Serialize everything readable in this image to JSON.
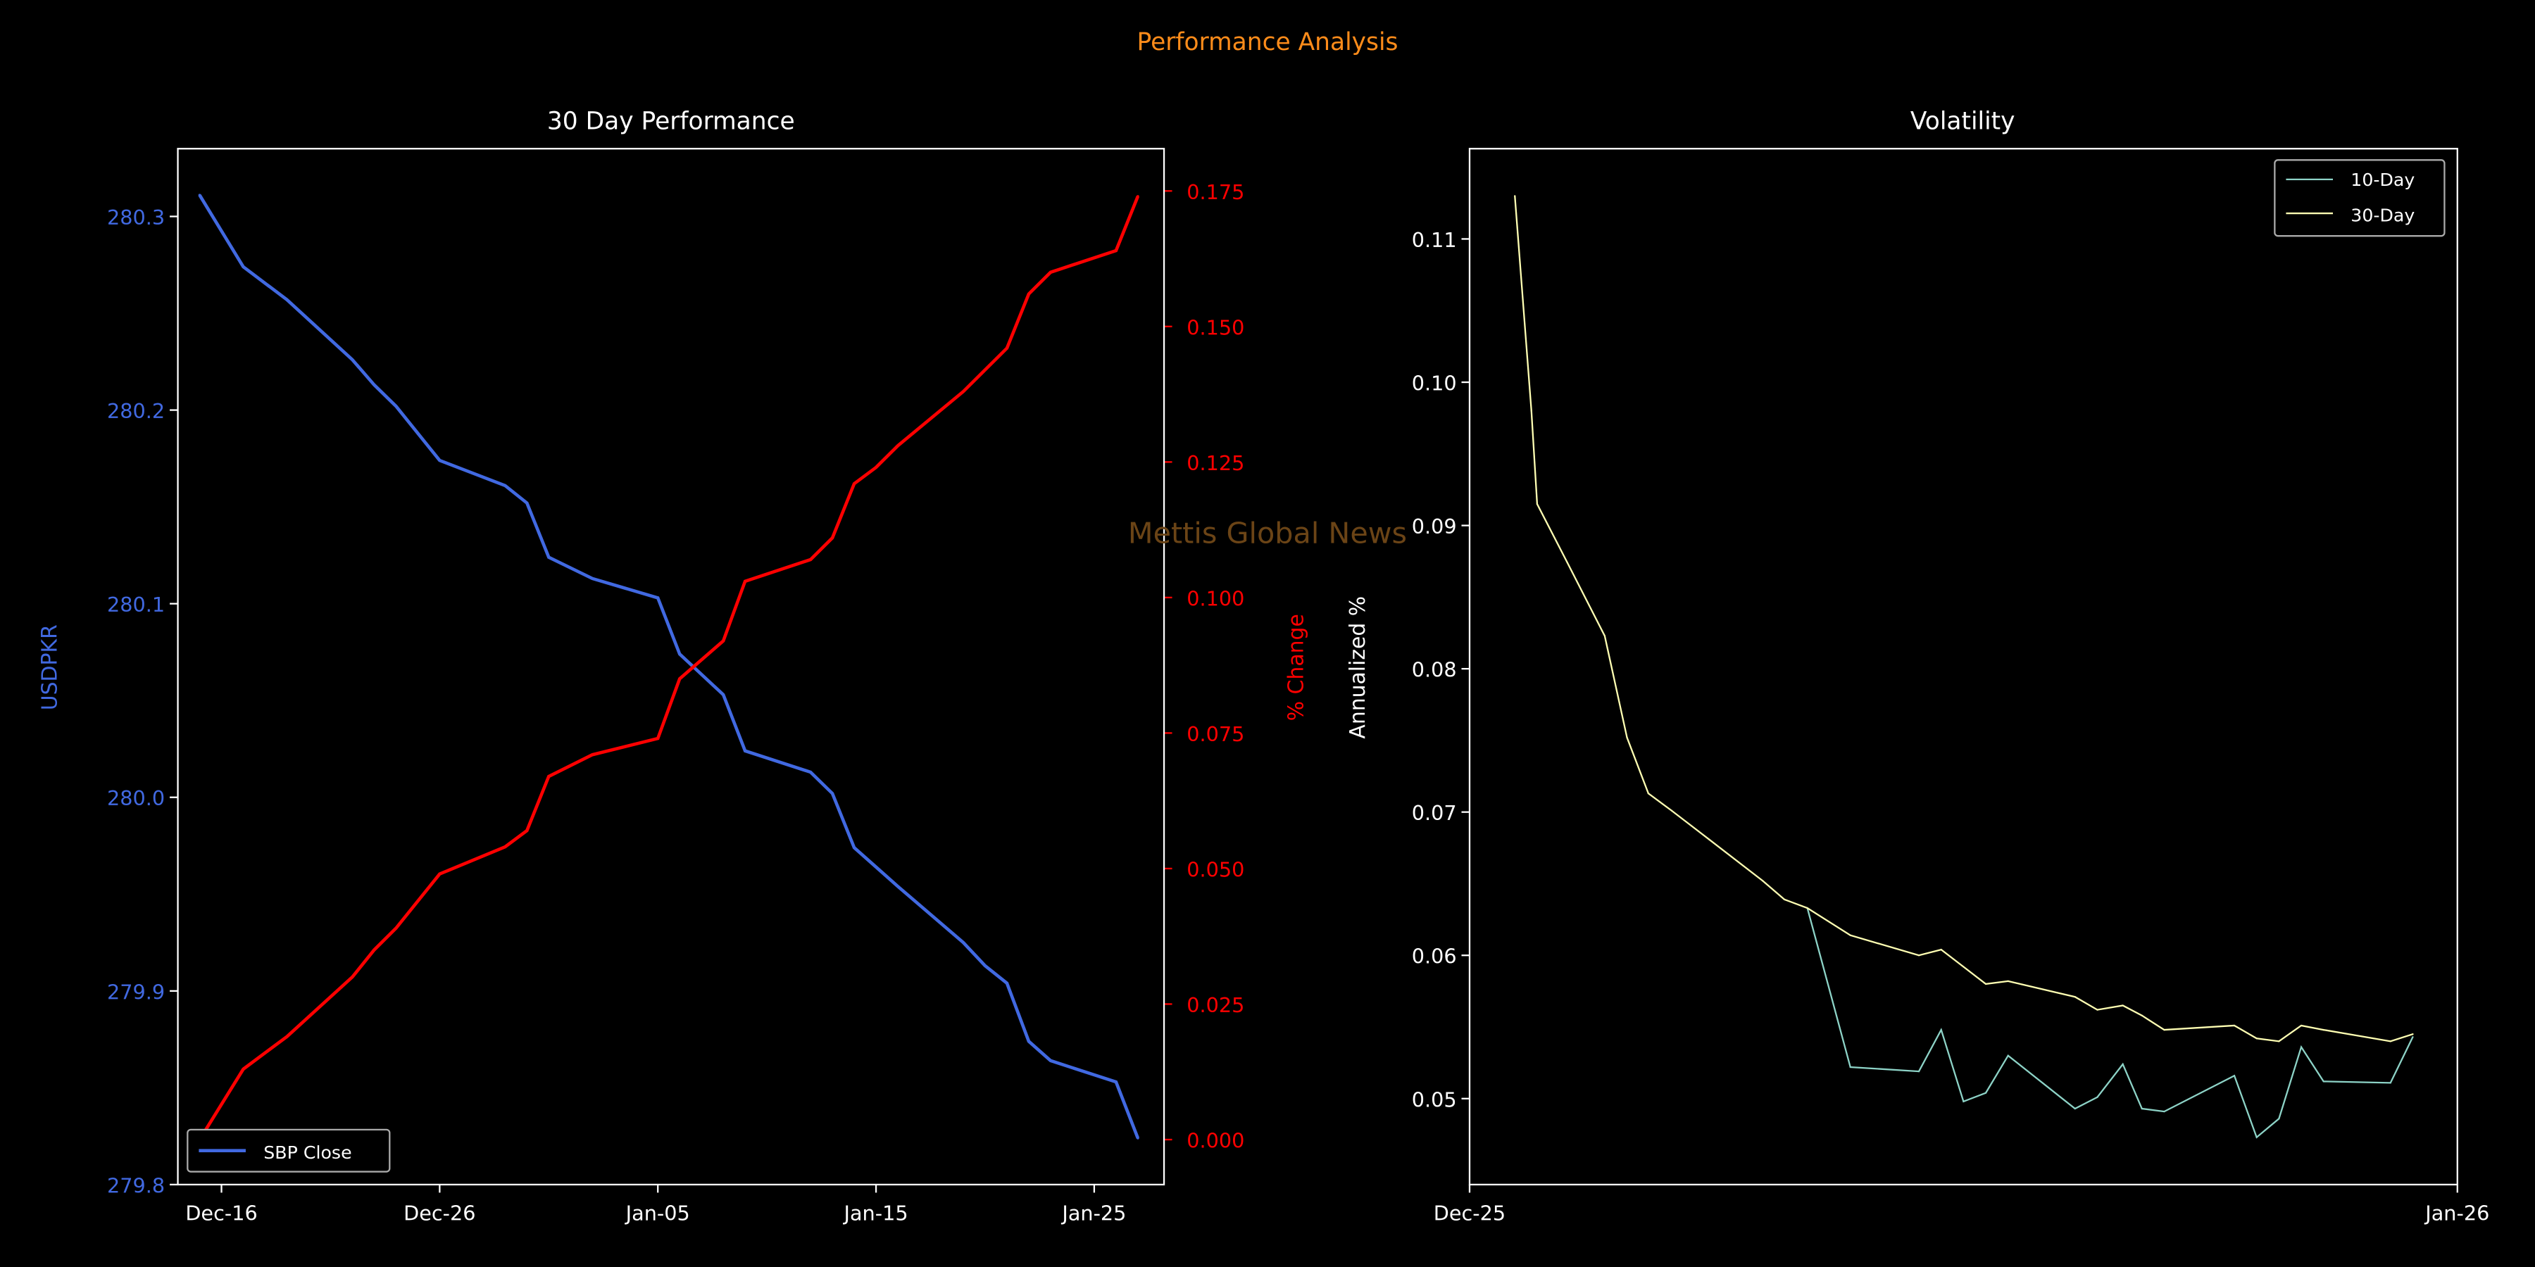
{
  "suptitle": "Performance Analysis",
  "watermark": "Mettis Global News",
  "colors": {
    "background": "#000000",
    "title": "#ff8c1a",
    "watermark": "#6b4416",
    "price": "#4169e1",
    "pct": "#ff0000",
    "vol10": "#8dd3c7",
    "vol30": "#ffffb3",
    "axis": "#ffffff"
  },
  "chart_data": [
    {
      "type": "line",
      "title": "30 Day Performance",
      "ylabel": "USDPKR",
      "ylabel_right": "% Change",
      "xlabel": "",
      "xticks": [
        {
          "label": "Dec-16",
          "day": 1
        },
        {
          "label": "Dec-26",
          "day": 11
        },
        {
          "label": "Jan-05",
          "day": 21
        },
        {
          "label": "Jan-15",
          "day": 31
        },
        {
          "label": "Jan-25",
          "day": 41
        }
      ],
      "xlim_days_from_dec15": [
        -1.0,
        44.2
      ],
      "ylim": [
        279.8,
        280.335
      ],
      "ylim_right": [
        -0.0083,
        0.1828
      ],
      "yticks": [
        "280.3",
        "280.2",
        "280.1",
        "280.0",
        "279.9",
        "279.8"
      ],
      "yticks_right": [
        "0.175",
        "0.150",
        "0.125",
        "0.100",
        "0.075",
        "0.050",
        "0.025",
        "0.000"
      ],
      "legend": {
        "label": "SBP Close",
        "placement": "lower-left"
      },
      "dates": [
        "Dec-15",
        "Dec-17",
        "Dec-19",
        "Dec-22",
        "Dec-23",
        "Dec-24",
        "Dec-26",
        "Dec-29",
        "Dec-30",
        "Dec-31",
        "Jan-02",
        "Jan-05",
        "Jan-06",
        "Jan-08",
        "Jan-09",
        "Jan-12",
        "Jan-13",
        "Jan-14",
        "Jan-15",
        "Jan-16",
        "Jan-19",
        "Jan-20",
        "Jan-21",
        "Jan-22",
        "Jan-23",
        "Jan-26",
        "Jan-27"
      ],
      "x_days": [
        0,
        2,
        4,
        7,
        8,
        9,
        11,
        14,
        15,
        16,
        18,
        21,
        22,
        24,
        25,
        28,
        29,
        30,
        31,
        32,
        35,
        36,
        37,
        38,
        39,
        42,
        43
      ],
      "series": [
        {
          "name": "SBP Close",
          "axis": "left",
          "values": [
            280.311,
            280.274,
            280.257,
            280.226,
            280.213,
            280.202,
            280.174,
            280.161,
            280.152,
            280.124,
            280.113,
            280.103,
            280.074,
            280.053,
            280.024,
            280.013,
            280.002,
            279.974,
            279.964,
            279.954,
            279.925,
            279.913,
            279.904,
            279.874,
            279.864,
            279.853,
            279.824
          ]
        },
        {
          "name": "% Change",
          "axis": "right",
          "values": [
            0.0,
            0.013,
            0.019,
            0.03,
            0.035,
            0.039,
            0.049,
            0.054,
            0.057,
            0.067,
            0.071,
            0.074,
            0.085,
            0.092,
            0.103,
            0.107,
            0.111,
            0.121,
            0.124,
            0.128,
            0.138,
            0.142,
            0.146,
            0.156,
            0.16,
            0.164,
            0.174
          ]
        }
      ]
    },
    {
      "type": "line",
      "title": "Volatility",
      "ylabel": "Annualized %",
      "xlabel": "",
      "xticks": [
        {
          "label": "Dec-25",
          "day": 0
        },
        {
          "label": "Jan-26",
          "day": 31
        }
      ],
      "xlim": [
        0,
        31
      ],
      "ylim": [
        0.044,
        0.1163
      ],
      "yticks": [
        "0.11",
        "0.10",
        "0.09",
        "0.08",
        "0.07",
        "0.06",
        "0.05"
      ],
      "legend": {
        "labels": [
          "10-Day",
          "30-Day"
        ],
        "placement": "top-right"
      },
      "series": [
        {
          "name": "10-Day",
          "x": [
            10.6,
            11.95,
            14.1,
            14.8,
            15.5,
            16.2,
            16.9,
            19.0,
            19.7,
            20.5,
            21.1,
            21.8,
            24.0,
            24.7,
            25.4,
            26.1,
            26.8,
            28.9,
            29.6
          ],
          "values": [
            0.0633,
            0.0522,
            0.0519,
            0.0548,
            0.0498,
            0.0504,
            0.053,
            0.0493,
            0.0501,
            0.0524,
            0.0493,
            0.0491,
            0.0516,
            0.0473,
            0.0486,
            0.0536,
            0.0512,
            0.0511,
            0.0543
          ]
        },
        {
          "name": "30-Day",
          "x": [
            1.42,
            1.94,
            2.12,
            3.07,
            4.24,
            4.94,
            5.61,
            6.34,
            7.51,
            9.2,
            9.88,
            10.6,
            11.95,
            14.1,
            14.8,
            15.5,
            16.2,
            16.9,
            19.0,
            19.7,
            20.5,
            21.1,
            21.8,
            24.0,
            24.7,
            25.4,
            26.1,
            26.8,
            28.9,
            29.6
          ],
          "values": [
            0.113,
            0.098,
            0.0915,
            0.0874,
            0.0823,
            0.0752,
            0.0713,
            0.0701,
            0.0681,
            0.0652,
            0.0639,
            0.0633,
            0.0614,
            0.06,
            0.0604,
            0.0592,
            0.058,
            0.0582,
            0.0571,
            0.0562,
            0.0565,
            0.0558,
            0.0548,
            0.0551,
            0.0542,
            0.054,
            0.0551,
            0.0548,
            0.054,
            0.0545
          ]
        }
      ]
    }
  ]
}
